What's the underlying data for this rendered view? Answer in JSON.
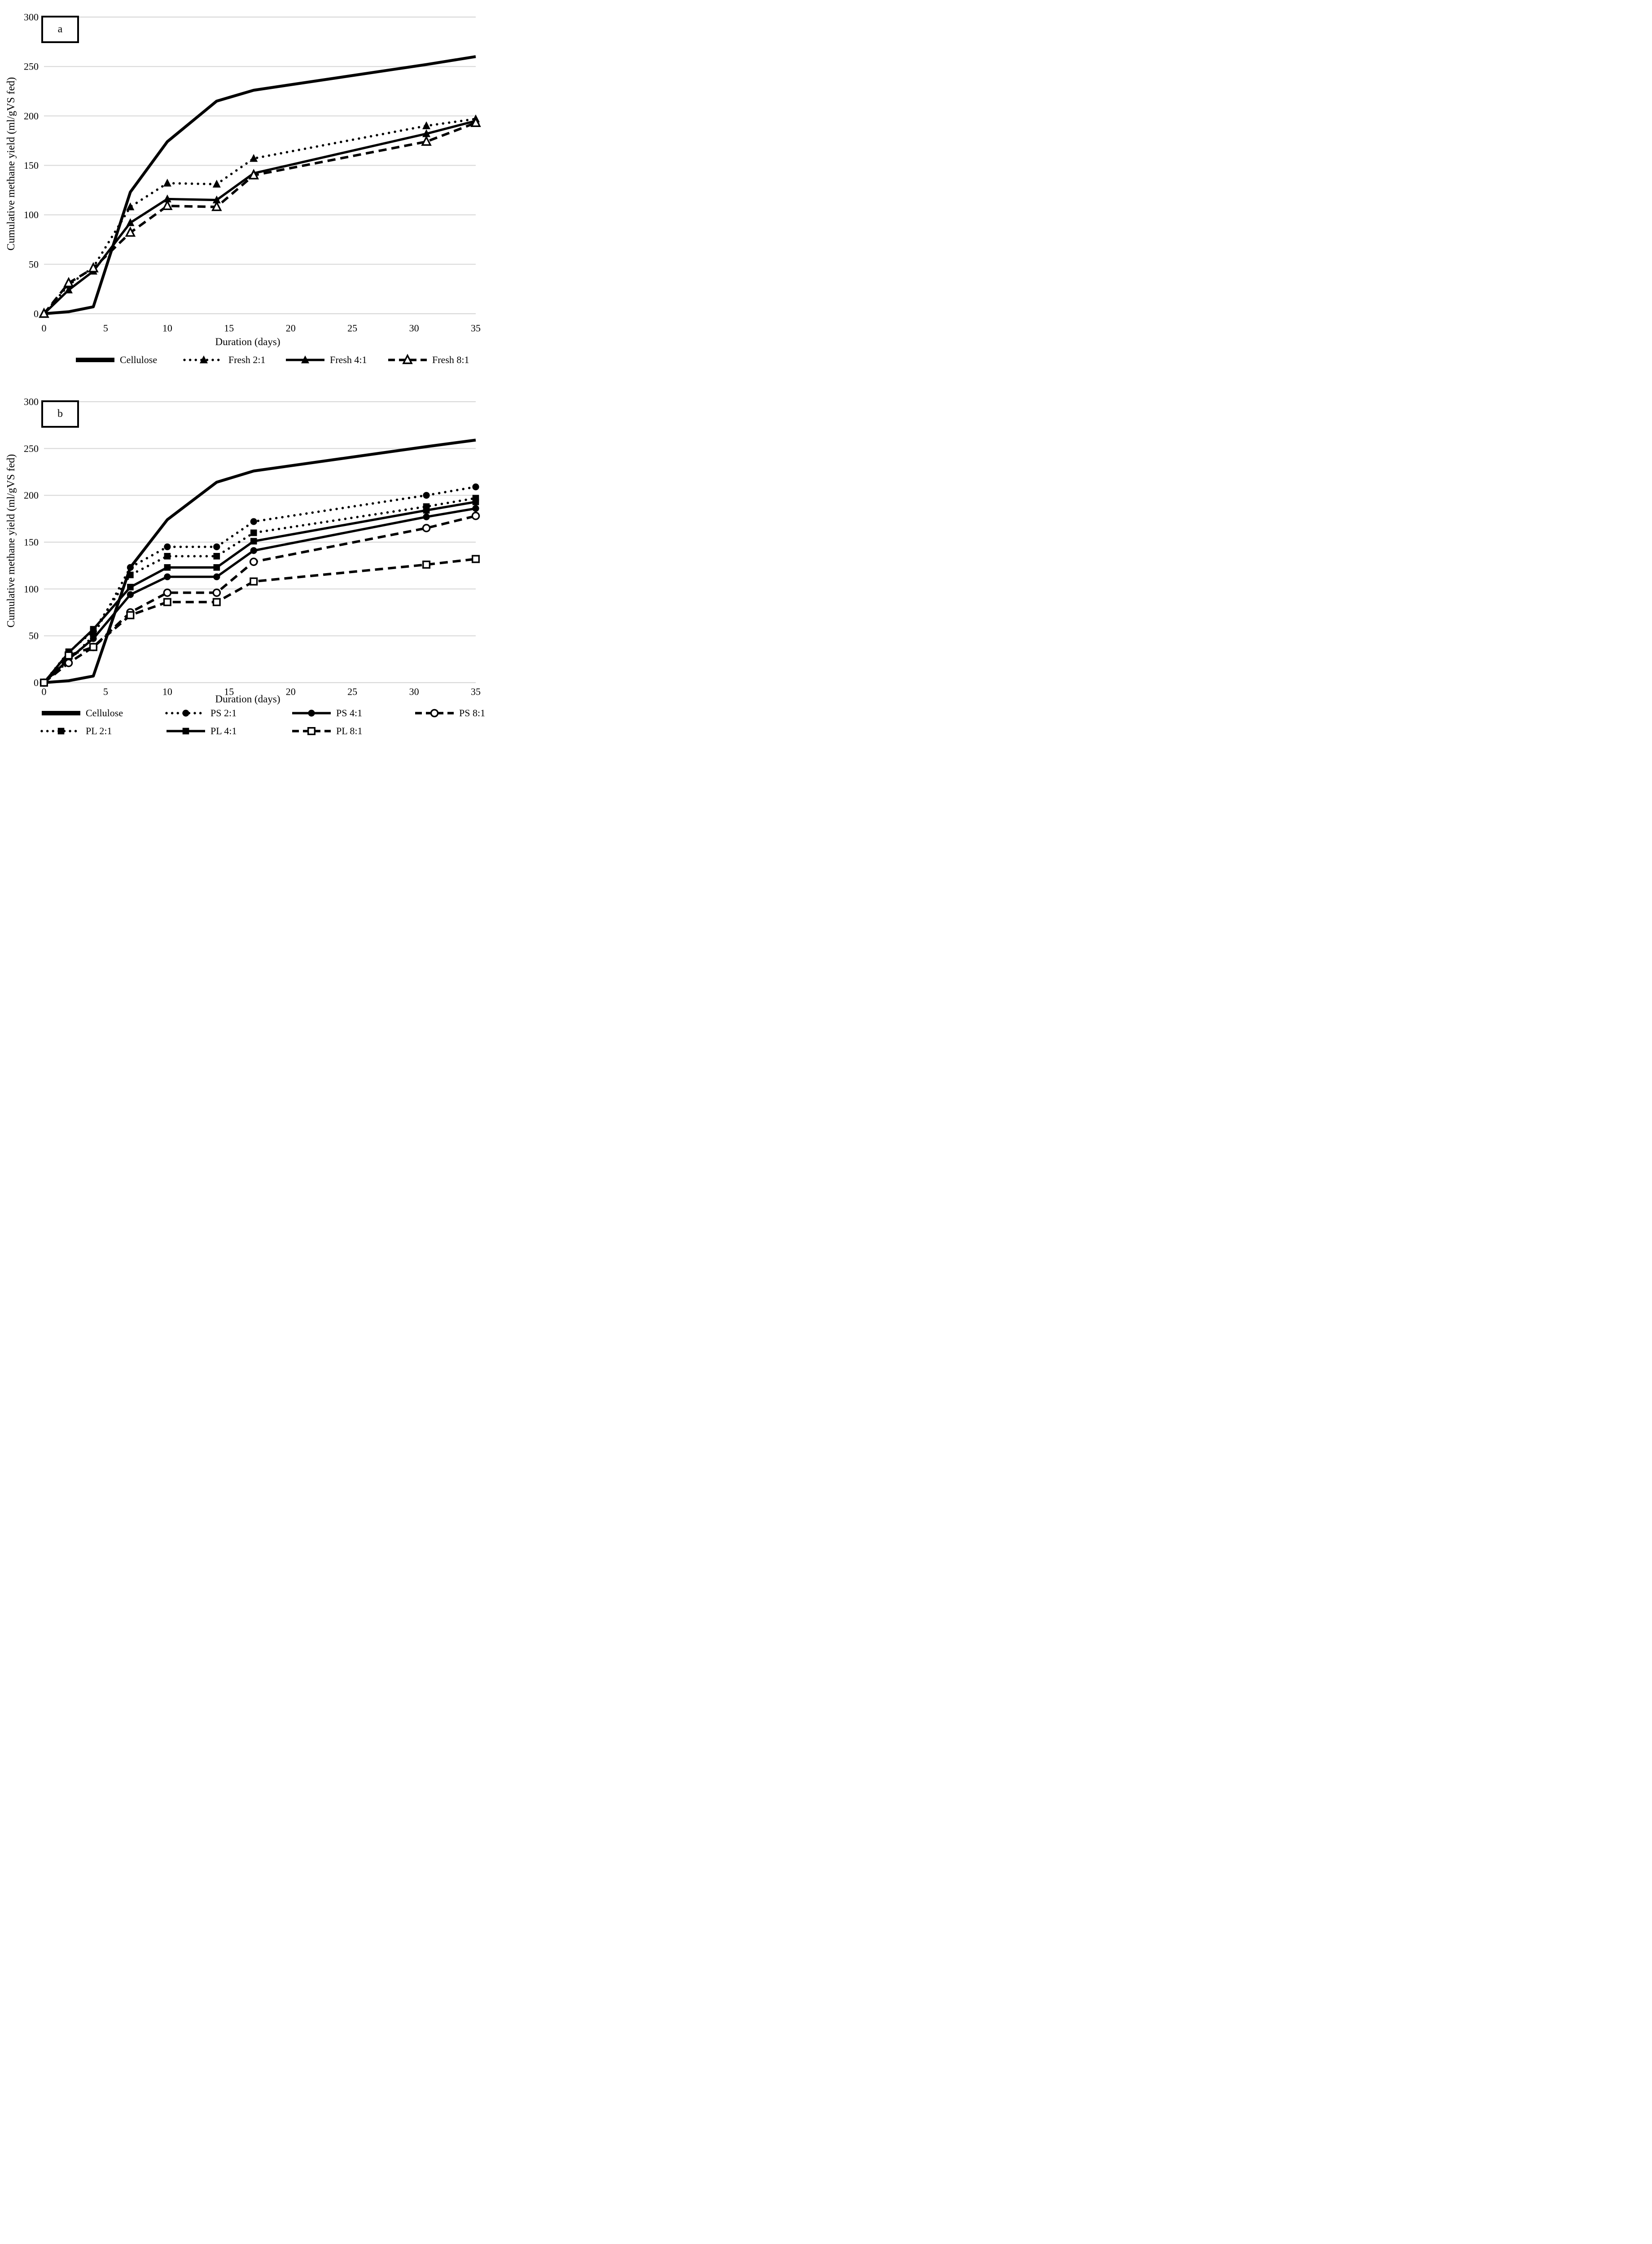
{
  "figure": {
    "background_color": "#ffffff",
    "line_color": "#000000",
    "grid_color": "#d9d9d9"
  },
  "panels": [
    {
      "letter": "a"
    },
    {
      "letter": "b"
    }
  ],
  "chart_data": [
    {
      "type": "line",
      "title": "",
      "xlabel": "Duration (days)",
      "ylabel": "Cumulative methane yield (ml/gVS fed)",
      "x": [
        0,
        2,
        4,
        7,
        10,
        14,
        17,
        31,
        35
      ],
      "xlim": [
        0,
        35
      ],
      "ylim": [
        0,
        300
      ],
      "xticks": [
        0,
        5,
        10,
        15,
        20,
        25,
        30,
        35
      ],
      "yticks": [
        0,
        50,
        100,
        150,
        200,
        250,
        300
      ],
      "grid": "horizontal",
      "legend_position": "bottom",
      "series": [
        {
          "name": "Cellulose",
          "line": "solid",
          "thick": true,
          "marker": "none",
          "values": [
            0,
            2,
            7,
            123,
            174,
            215,
            226,
            252,
            260
          ]
        },
        {
          "name": "Fresh 2:1",
          "line": "dotted",
          "thick": false,
          "marker": "triangle-filled",
          "values": [
            0,
            29,
            47,
            108,
            132,
            131,
            157,
            190,
            197
          ]
        },
        {
          "name": "Fresh 4:1",
          "line": "solid",
          "thick": false,
          "marker": "triangle-filled",
          "values": [
            0,
            24,
            43,
            92,
            116,
            115,
            142,
            182,
            195
          ]
        },
        {
          "name": "Fresh 8:1",
          "line": "dashed",
          "thick": false,
          "marker": "triangle-open",
          "values": [
            0,
            31,
            46,
            82,
            109,
            108,
            140,
            174,
            193
          ]
        }
      ]
    },
    {
      "type": "line",
      "title": "",
      "xlabel": "Duration (days)",
      "ylabel": "Cumulative methane yield (ml/gVS fed)",
      "x": [
        0,
        2,
        4,
        7,
        10,
        14,
        17,
        31,
        35
      ],
      "xlim": [
        0,
        35
      ],
      "ylim": [
        0,
        300
      ],
      "xticks": [
        0,
        5,
        10,
        15,
        20,
        25,
        30,
        35
      ],
      "yticks": [
        0,
        50,
        100,
        150,
        200,
        250,
        300
      ],
      "grid": "horizontal",
      "legend_position": "bottom",
      "series": [
        {
          "name": "Cellulose",
          "line": "solid",
          "thick": true,
          "marker": "none",
          "values": [
            0,
            2,
            7,
            123,
            174,
            214,
            226,
            252,
            259
          ]
        },
        {
          "name": "PS 2:1",
          "line": "dotted",
          "thick": false,
          "marker": "circle-filled",
          "values": [
            0,
            23,
            50,
            123,
            145,
            145,
            172,
            200,
            209
          ]
        },
        {
          "name": "PS 4:1",
          "line": "solid",
          "thick": false,
          "marker": "circle-filled",
          "values": [
            0,
            25,
            47,
            94,
            113,
            113,
            141,
            177,
            186
          ]
        },
        {
          "name": "PS 8:1",
          "line": "dashed",
          "thick": false,
          "marker": "circle-open",
          "values": [
            0,
            21,
            38,
            75,
            96,
            96,
            129,
            165,
            178
          ]
        },
        {
          "name": "PL 2:1",
          "line": "dotted",
          "thick": false,
          "marker": "square-filled",
          "values": [
            0,
            33,
            55,
            115,
            135,
            135,
            160,
            188,
            197
          ]
        },
        {
          "name": "PL 4:1",
          "line": "solid",
          "thick": false,
          "marker": "square-filled",
          "values": [
            0,
            32,
            57,
            102,
            123,
            123,
            151,
            184,
            193
          ]
        },
        {
          "name": "PL 8:1",
          "line": "dashed",
          "thick": false,
          "marker": "square-open",
          "values": [
            0,
            29,
            38,
            72,
            86,
            86,
            108,
            126,
            132
          ]
        }
      ]
    }
  ]
}
